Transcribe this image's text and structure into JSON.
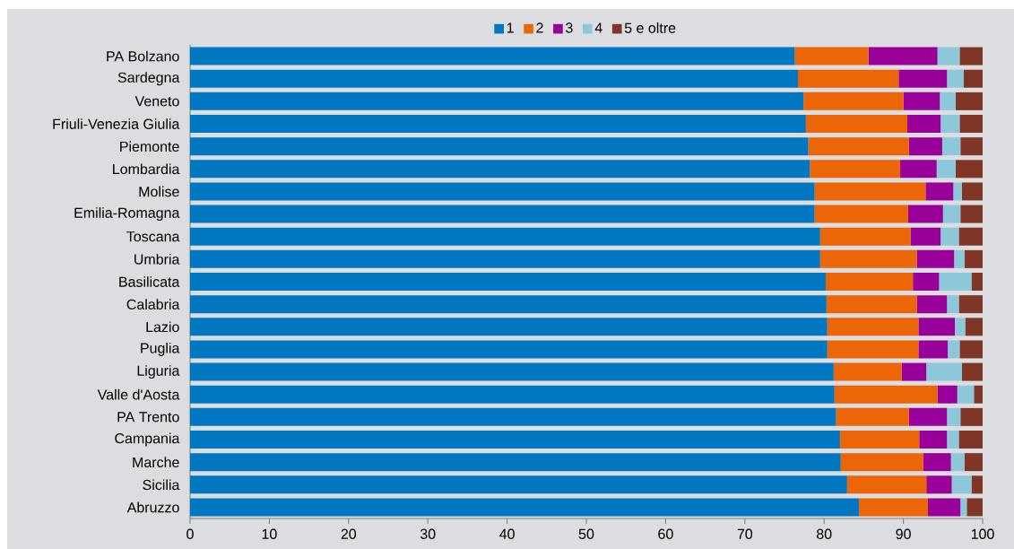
{
  "chart_data": {
    "type": "bar",
    "orientation": "horizontal",
    "stacked": true,
    "legend": "top",
    "categories": [
      "PA Bolzano",
      "Sardegna",
      "Veneto",
      "Friuli-Venezia Giulia",
      "Piemonte",
      "Lombardia",
      "Molise",
      "Emilia-Romagna",
      "Toscana",
      "Umbria",
      "Basilicata",
      "Calabria",
      "Lazio",
      "Puglia",
      "Liguria",
      "Valle d'Aosta",
      "PA Trento",
      "Campania",
      "Marche",
      "Sicilia",
      "Abruzzo"
    ],
    "series": [
      {
        "name": "1",
        "color": "#0077c0",
        "values": [
          76.3,
          76.7,
          77.4,
          77.7,
          78.0,
          78.2,
          78.8,
          78.8,
          79.5,
          79.5,
          80.2,
          80.3,
          80.4,
          80.4,
          81.2,
          81.3,
          81.5,
          82.0,
          82.1,
          82.9,
          84.4
        ]
      },
      {
        "name": "2",
        "color": "#ec6608",
        "values": [
          9.3,
          12.7,
          12.6,
          12.8,
          12.7,
          11.4,
          14.0,
          11.8,
          11.4,
          12.2,
          11.0,
          11.4,
          11.5,
          11.5,
          8.6,
          13.0,
          9.2,
          10.0,
          10.4,
          10.0,
          8.7
        ]
      },
      {
        "name": "3",
        "color": "#990099",
        "values": [
          8.7,
          6.1,
          4.6,
          4.2,
          4.2,
          4.6,
          3.5,
          4.4,
          3.8,
          4.7,
          3.3,
          3.8,
          4.6,
          3.7,
          3.1,
          2.5,
          4.8,
          3.5,
          3.5,
          3.2,
          4.1
        ]
      },
      {
        "name": "4",
        "color": "#8cc8da",
        "values": [
          2.8,
          2.1,
          2.0,
          2.4,
          2.3,
          2.4,
          1.1,
          2.2,
          2.3,
          1.3,
          4.1,
          1.5,
          1.3,
          1.5,
          4.5,
          2.1,
          1.7,
          1.5,
          1.7,
          2.5,
          0.8
        ]
      },
      {
        "name": "5 e oltre",
        "color": "#7f3627",
        "values": [
          2.9,
          2.4,
          3.4,
          2.9,
          2.8,
          3.4,
          2.6,
          2.8,
          3.0,
          2.3,
          1.4,
          3.0,
          2.2,
          2.9,
          2.6,
          1.1,
          2.8,
          3.0,
          2.3,
          1.4,
          2.0
        ]
      }
    ],
    "xlim": [
      0,
      100
    ],
    "xticks": [
      0,
      10,
      20,
      30,
      40,
      50,
      60,
      70,
      80,
      90,
      100
    ]
  }
}
